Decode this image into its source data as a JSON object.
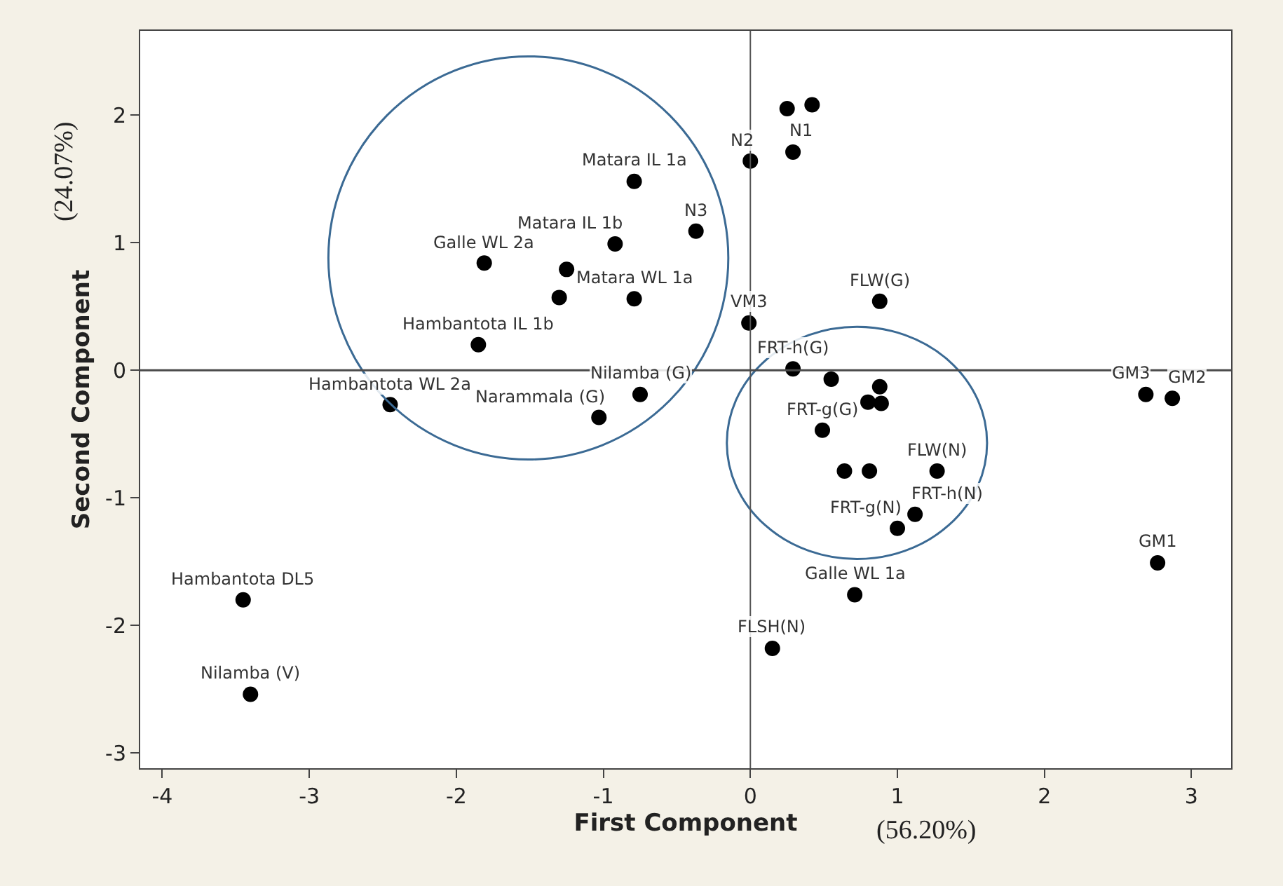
{
  "chart_data": {
    "type": "scatter",
    "xlabel": "First Component",
    "ylabel": "Second Component",
    "x": [
      -3.45,
      -3.4,
      -2.45,
      -1.85,
      -1.81,
      -1.25,
      -1.3,
      -0.92,
      -0.79,
      -0.79,
      -0.37,
      -0.75,
      -1.03,
      0.0,
      0.29,
      0.25,
      0.42,
      -0.01,
      0.88,
      0.29,
      0.55,
      0.88,
      0.8,
      0.89,
      0.49,
      0.64,
      0.81,
      1.27,
      1.12,
      1.0,
      0.71,
      0.15,
      2.69,
      2.87,
      2.77
    ],
    "series": [
      {
        "color": "#000000",
        "values": [
          -1.8,
          -2.54,
          -0.27,
          0.2,
          0.84,
          0.79,
          0.57,
          0.99,
          1.48,
          0.56,
          1.09,
          -0.19,
          -0.37,
          1.64,
          1.71,
          2.05,
          2.08,
          0.37,
          0.54,
          0.01,
          -0.07,
          -0.13,
          -0.25,
          -0.26,
          -0.47,
          -0.79,
          -0.79,
          -0.79,
          -1.13,
          -1.24,
          -1.76,
          -2.18,
          -0.19,
          -0.22,
          -1.51
        ]
      }
    ],
    "marker": "circle",
    "xlim": [
      -4.15,
      3.27
    ],
    "ylim": [
      -3.12,
      2.66
    ],
    "xticks": [
      -4,
      -3,
      -2,
      -1,
      0,
      1,
      2,
      3
    ],
    "yticks": [
      -3,
      -2,
      -1,
      0,
      1,
      2
    ],
    "ref_lines": [
      {
        "axis": "x",
        "value": 0
      },
      {
        "axis": "y",
        "value": 0
      }
    ],
    "annotations": [
      {
        "text": "Hambantota DL5",
        "x": -3.45,
        "y": -1.8
      },
      {
        "text": "Nilamba (V)",
        "x": -3.4,
        "y": -2.54
      },
      {
        "text": "Hambantota WL 2a",
        "x": -2.45,
        "y": -0.27
      },
      {
        "text": "Hambantota IL 1b",
        "x": -1.85,
        "y": 0.2
      },
      {
        "text": "Galle WL 2a",
        "x": -1.81,
        "y": 0.84
      },
      {
        "text": "Matara IL 1b",
        "x": -0.92,
        "y": 0.99
      },
      {
        "text": "Matara IL 1a",
        "x": -0.79,
        "y": 1.48
      },
      {
        "text": "Matara WL 1a",
        "x": -0.79,
        "y": 0.56
      },
      {
        "text": "N3",
        "x": -0.37,
        "y": 1.09
      },
      {
        "text": "Nilamba (G)",
        "x": -0.75,
        "y": -0.19
      },
      {
        "text": "Narammala (G)",
        "x": -1.03,
        "y": -0.37
      },
      {
        "text": "N2",
        "x": 0.0,
        "y": 1.64
      },
      {
        "text": "N1",
        "x": 0.29,
        "y": 1.71
      },
      {
        "text": "VM3",
        "x": -0.01,
        "y": 0.37
      },
      {
        "text": "FLW(G)",
        "x": 0.88,
        "y": 0.54
      },
      {
        "text": "FRT-h(G)",
        "x": 0.29,
        "y": 0.01
      },
      {
        "text": "FRT-g(G)",
        "x": 0.49,
        "y": -0.47
      },
      {
        "text": "FLW(N)",
        "x": 1.27,
        "y": -0.79
      },
      {
        "text": "FRT-h(N)",
        "x": 1.12,
        "y": -1.13
      },
      {
        "text": "FRT-g(N)",
        "x": 1.0,
        "y": -1.24
      },
      {
        "text": "Galle WL 1a",
        "x": 0.71,
        "y": -1.76
      },
      {
        "text": "FLSH(N)",
        "x": 0.15,
        "y": -2.18
      },
      {
        "text": "GM3",
        "x": 2.69,
        "y": -0.19
      },
      {
        "text": "GM2",
        "x": 2.87,
        "y": -0.22
      },
      {
        "text": "GM1",
        "x": 2.77,
        "y": -1.51
      },
      "(56.20%)",
      "(24.07%)"
    ]
  }
}
